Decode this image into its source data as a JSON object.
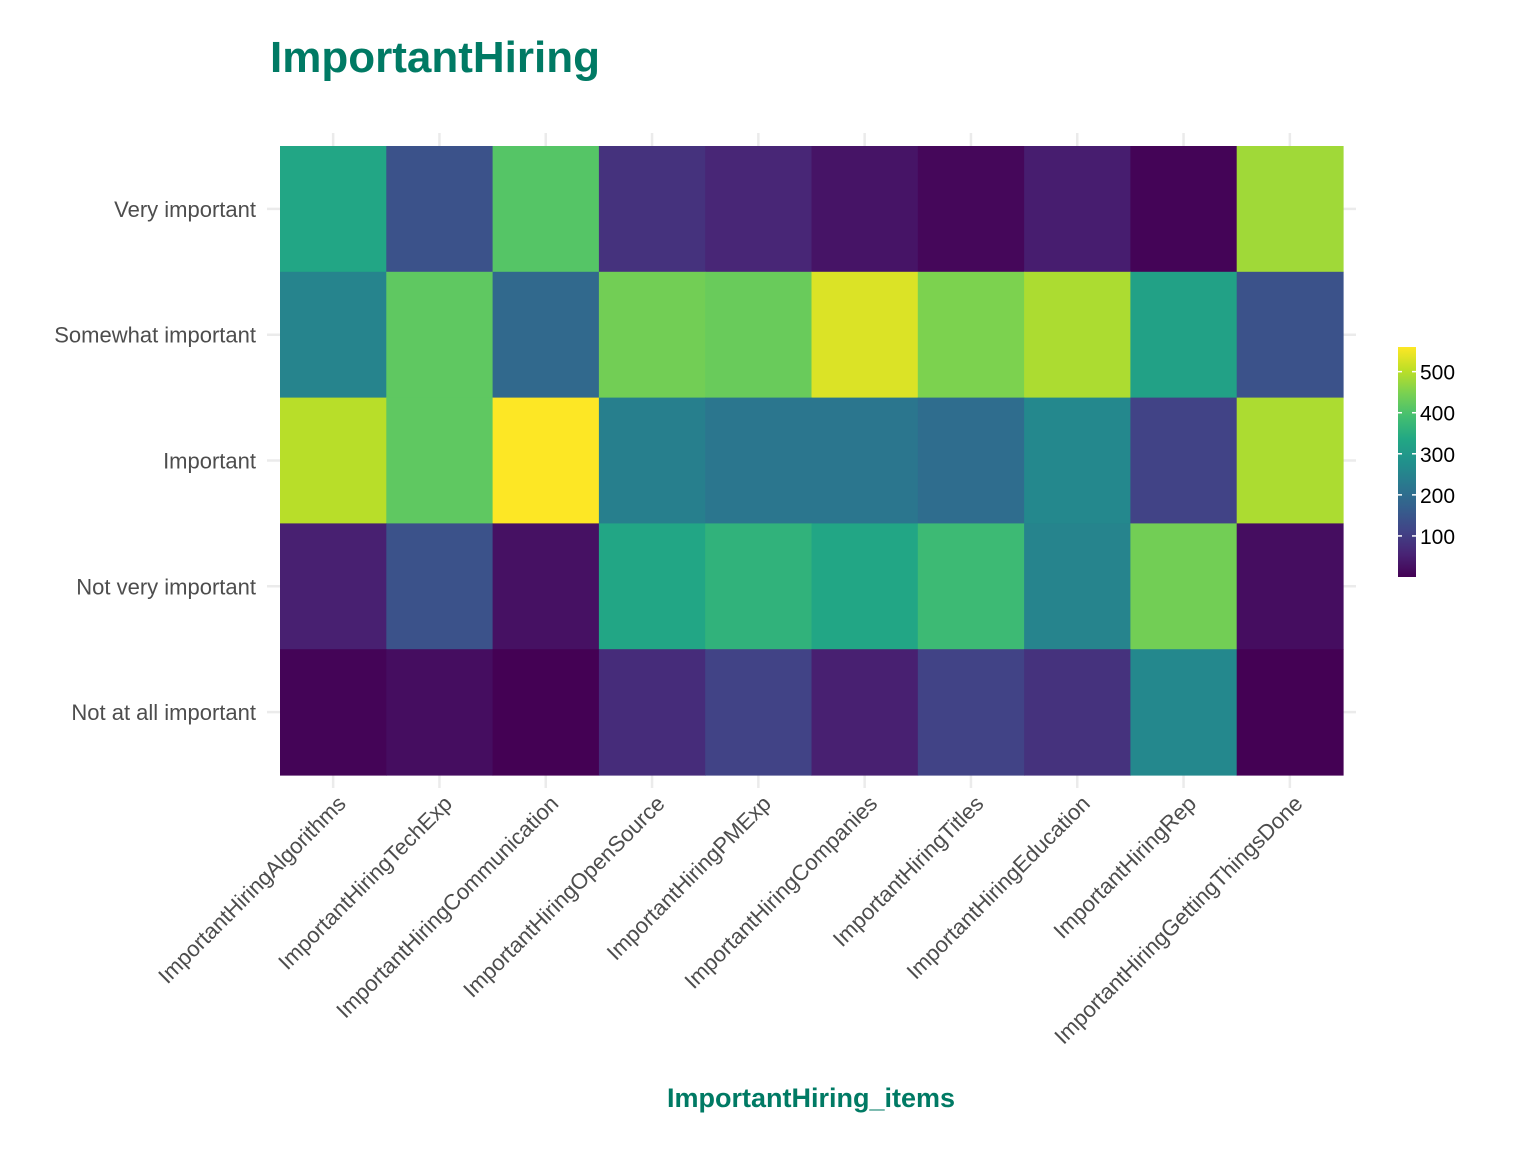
{
  "chart_data": {
    "type": "heatmap",
    "title": "ImportantHiring",
    "xlabel": "ImportantHiring_items",
    "ylabel": "",
    "x_categories": [
      "ImportantHiringAlgorithms",
      "ImportantHiringTechExp",
      "ImportantHiringCommunication",
      "ImportantHiringOpenSource",
      "ImportantHiringPMExp",
      "ImportantHiringCompanies",
      "ImportantHiringTitles",
      "ImportantHiringEducation",
      "ImportantHiringRep",
      "ImportantHiringGettingThingsDone"
    ],
    "y_categories": [
      "Very important",
      "Somewhat important",
      "Important",
      "Not very important",
      "Not at all important"
    ],
    "values": [
      [
        330,
        140,
        410,
        80,
        60,
        30,
        10,
        45,
        5,
        480
      ],
      [
        250,
        420,
        190,
        440,
        430,
        530,
        450,
        490,
        320,
        140
      ],
      [
        500,
        420,
        560,
        240,
        220,
        220,
        200,
        260,
        110,
        490
      ],
      [
        50,
        140,
        25,
        330,
        360,
        330,
        380,
        250,
        440,
        20
      ],
      [
        5,
        20,
        0,
        70,
        110,
        50,
        110,
        80,
        260,
        0
      ]
    ],
    "color_scale": "viridis",
    "color_range": [
      0,
      560
    ],
    "legend_ticks": [
      100,
      200,
      300,
      400,
      500
    ],
    "legend_position": "right",
    "accent_color": "#007a64",
    "grid": true
  }
}
